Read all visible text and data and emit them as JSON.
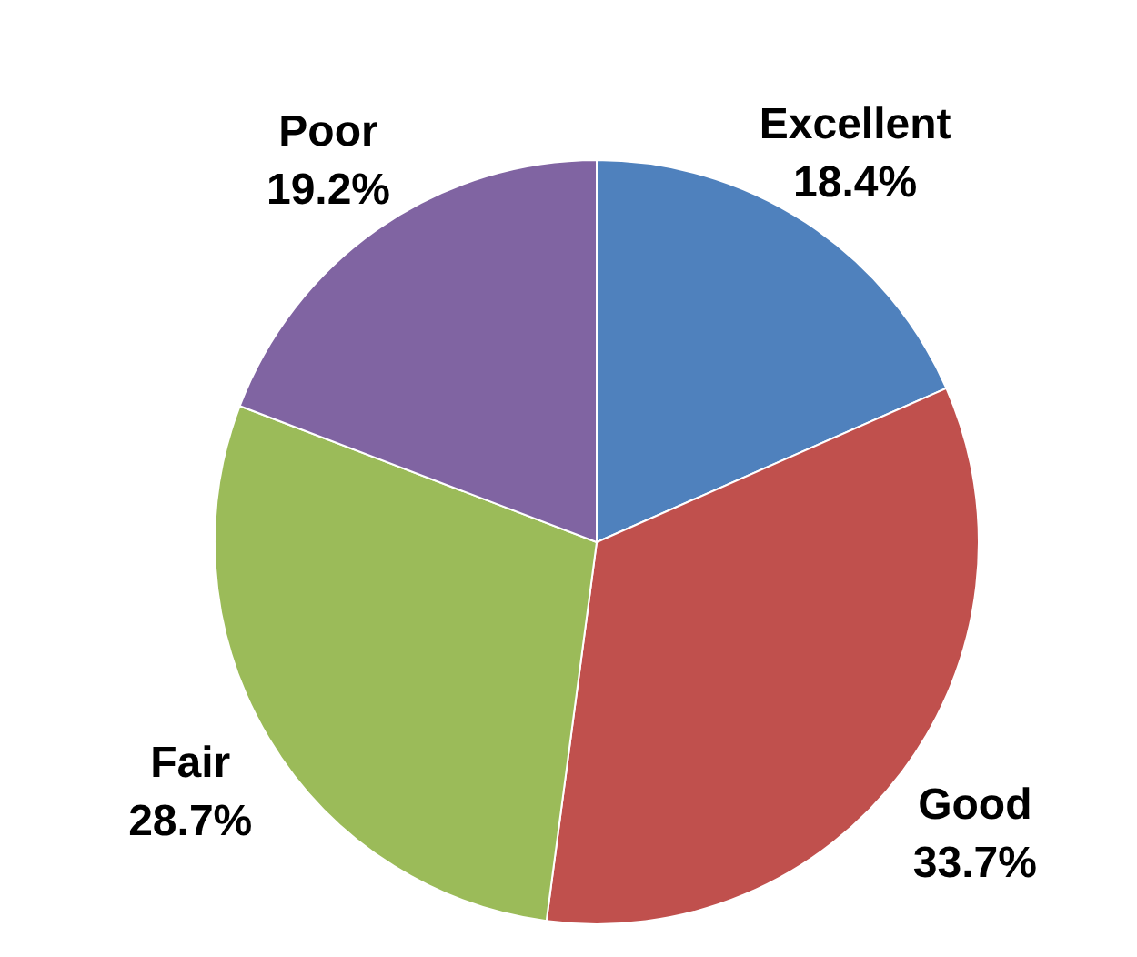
{
  "chart_data": {
    "type": "pie",
    "categories": [
      "Excellent",
      "Good",
      "Fair",
      "Poor"
    ],
    "values": [
      18.4,
      33.7,
      28.7,
      19.2
    ],
    "value_labels": [
      "18.4%",
      "33.7%",
      "28.7%",
      "19.2%"
    ],
    "colors": [
      "#4f81bd",
      "#c0504d",
      "#9bbb59",
      "#8064a2"
    ]
  }
}
